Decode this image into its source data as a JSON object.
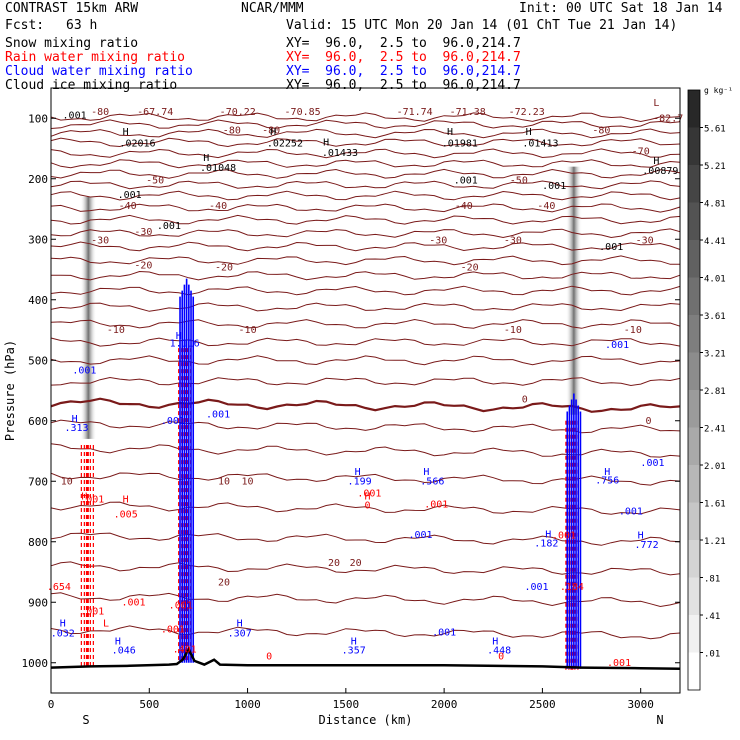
{
  "header": {
    "model": "CONTRAST 15km ARW",
    "institution": "NCAR/MMM",
    "init": "Init: 00 UTC Sat 18 Jan 14",
    "fcst_label": "Fcst:",
    "fcst_value": "63 h",
    "valid": "Valid: 15 UTC Mon 20 Jan 14 (01 ChT Tue 21 Jan 14)",
    "fields": [
      {
        "name": "Snow mixing ratio",
        "xy": "XY=  96.0,  2.5 to  96.0,214.7",
        "color": "#000000"
      },
      {
        "name": "Rain water mixing ratio",
        "xy": "XY=  96.0,  2.5 to  96.0,214.7",
        "color": "#ff0000"
      },
      {
        "name": "Cloud water mixing ratio",
        "xy": "XY=  96.0,  2.5 to  96.0,214.7",
        "color": "#0000ff"
      },
      {
        "name": "Cloud ice mixing ratio",
        "xy": "XY=  96.0,  2.5 to  96.0,214.7",
        "color": "#000000"
      }
    ]
  },
  "chart_data": {
    "type": "cross-section",
    "xlabel": "Distance (km)",
    "ylabel": "Pressure (hPa)",
    "xlim": [
      0,
      3200
    ],
    "ylim": [
      1050,
      50
    ],
    "x_ticks": [
      0,
      500,
      1000,
      1500,
      2000,
      2500,
      3000
    ],
    "x_tick_labels": [
      "0",
      "500",
      "1000",
      "1500",
      "2000",
      "2500",
      "3000"
    ],
    "y_ticks": [
      100,
      200,
      300,
      400,
      500,
      600,
      700,
      800,
      900,
      1000
    ],
    "y_tick_labels": [
      "100",
      "200",
      "300",
      "400",
      "500",
      "600",
      "700",
      "800",
      "900",
      "1000"
    ],
    "ends": {
      "left": "S",
      "right": "N"
    },
    "colorbar": {
      "unit": "g kg⁻¹",
      "labels": [
        "5.61",
        "5.21",
        "4.81",
        "4.41",
        "4.01",
        "3.61",
        "3.21",
        "2.81",
        "2.41",
        "2.01",
        "1.61",
        "1.21",
        ".81",
        ".41",
        ".01"
      ]
    },
    "temperature_contours": [
      {
        "label": "-80",
        "x": 250,
        "p": 95
      },
      {
        "label": "-67.74",
        "x": 530,
        "p": 95
      },
      {
        "label": "-70.22",
        "x": 950,
        "p": 95
      },
      {
        "label": "-70.85",
        "x": 1280,
        "p": 95
      },
      {
        "label": "-71.74",
        "x": 1850,
        "p": 95
      },
      {
        "label": "-71.38",
        "x": 2120,
        "p": 95
      },
      {
        "label": "-72.23",
        "x": 2420,
        "p": 95
      },
      {
        "label": "-82.7",
        "x": 3140,
        "p": 105
      },
      {
        "label": "-80",
        "x": 920,
        "p": 125
      },
      {
        "label": "-80",
        "x": 1120,
        "p": 125
      },
      {
        "label": "-80",
        "x": 2800,
        "p": 125
      },
      {
        "label": "-70",
        "x": 3000,
        "p": 160
      },
      {
        "label": "-50",
        "x": 530,
        "p": 208
      },
      {
        "label": "-50",
        "x": 2380,
        "p": 208
      },
      {
        "label": "-40",
        "x": 390,
        "p": 250
      },
      {
        "label": "-40",
        "x": 850,
        "p": 250
      },
      {
        "label": "-40",
        "x": 2100,
        "p": 250
      },
      {
        "label": "-40",
        "x": 2520,
        "p": 250
      },
      {
        "label": "-30",
        "x": 470,
        "p": 293
      },
      {
        "label": "-30",
        "x": 250,
        "p": 307
      },
      {
        "label": "-30",
        "x": 1970,
        "p": 307
      },
      {
        "label": "-30",
        "x": 2350,
        "p": 307
      },
      {
        "label": "-30",
        "x": 3020,
        "p": 307
      },
      {
        "label": "-20",
        "x": 470,
        "p": 348
      },
      {
        "label": "-20",
        "x": 880,
        "p": 352
      },
      {
        "label": "-20",
        "x": 2130,
        "p": 352
      },
      {
        "label": "-10",
        "x": 330,
        "p": 455
      },
      {
        "label": "-10",
        "x": 1000,
        "p": 455
      },
      {
        "label": "-10",
        "x": 2350,
        "p": 455
      },
      {
        "label": "-10",
        "x": 2960,
        "p": 455
      },
      {
        "label": "0",
        "x": 2410,
        "p": 570
      },
      {
        "label": "0",
        "x": 3040,
        "p": 605
      },
      {
        "label": "10",
        "x": 80,
        "p": 705
      },
      {
        "label": "10",
        "x": 880,
        "p": 705
      },
      {
        "label": "10",
        "x": 1000,
        "p": 705
      },
      {
        "label": "20",
        "x": 880,
        "p": 872
      },
      {
        "label": "20",
        "x": 1440,
        "p": 840
      },
      {
        "label": "20",
        "x": 1550,
        "p": 840
      }
    ],
    "ice_labels": [
      {
        "label": ".001",
        "x": 120,
        "p": 100
      },
      {
        "label": ".02016",
        "x": 440,
        "p": 147
      },
      {
        "label": ".02252",
        "x": 1190,
        "p": 147
      },
      {
        "label": ".01433",
        "x": 1470,
        "p": 162
      },
      {
        "label": ".01981",
        "x": 2080,
        "p": 147
      },
      {
        "label": ".01413",
        "x": 2490,
        "p": 147
      },
      {
        "label": ".01048",
        "x": 850,
        "p": 187
      },
      {
        "label": ".001",
        "x": 2110,
        "p": 208
      },
      {
        "label": ".00879",
        "x": 3100,
        "p": 192
      },
      {
        "label": ".001",
        "x": 400,
        "p": 232
      },
      {
        "label": ".001",
        "x": 600,
        "p": 283
      },
      {
        "label": ".001",
        "x": 2560,
        "p": 217
      },
      {
        "label": ".001",
        "x": 2850,
        "p": 318
      }
    ],
    "ice_maxima": [
      {
        "label": "H",
        "x": 380,
        "p": 128
      },
      {
        "label": "H",
        "x": 1130,
        "p": 128
      },
      {
        "label": "H",
        "x": 1400,
        "p": 145
      },
      {
        "label": "H",
        "x": 2030,
        "p": 128
      },
      {
        "label": "H",
        "x": 2430,
        "p": 128
      },
      {
        "label": "H",
        "x": 790,
        "p": 171
      },
      {
        "label": "H",
        "x": 3080,
        "p": 176
      },
      {
        "label": "L",
        "x": 3080,
        "p": 80
      }
    ],
    "cloud_labels": [
      {
        "label": "1.116",
        "x": 680,
        "p": 477
      },
      {
        "label": ".001",
        "x": 170,
        "p": 522
      },
      {
        "label": ".001",
        "x": 2880,
        "p": 480
      },
      {
        "label": ".001",
        "x": 620,
        "p": 605
      },
      {
        "label": ".001",
        "x": 850,
        "p": 595
      },
      {
        "label": ".313",
        "x": 130,
        "p": 617
      },
      {
        "label": ".001",
        "x": 3060,
        "p": 675
      },
      {
        "label": ".199",
        "x": 1570,
        "p": 705
      },
      {
        "label": ".566",
        "x": 1940,
        "p": 705
      },
      {
        "label": ".001",
        "x": 1880,
        "p": 794
      },
      {
        "label": ".182",
        "x": 2520,
        "p": 808
      },
      {
        "label": ".756",
        "x": 2830,
        "p": 704
      },
      {
        "label": ".001",
        "x": 2950,
        "p": 755
      },
      {
        "label": ".772",
        "x": 3030,
        "p": 810
      },
      {
        "label": ".001",
        "x": 2470,
        "p": 880
      },
      {
        "label": ".032",
        "x": 60,
        "p": 957
      },
      {
        "label": ".046",
        "x": 370,
        "p": 985
      },
      {
        "label": ".307",
        "x": 960,
        "p": 957
      },
      {
        "label": ".357",
        "x": 1540,
        "p": 985
      },
      {
        "label": ".001",
        "x": 2000,
        "p": 955
      },
      {
        "label": ".448",
        "x": 2280,
        "p": 985
      }
    ],
    "cloud_maxima": [
      {
        "label": "H",
        "x": 650,
        "p": 465
      },
      {
        "label": "H",
        "x": 120,
        "p": 602
      },
      {
        "label": "H",
        "x": 1560,
        "p": 690
      },
      {
        "label": "H",
        "x": 1910,
        "p": 690
      },
      {
        "label": "H",
        "x": 2530,
        "p": 793
      },
      {
        "label": "H",
        "x": 2830,
        "p": 690
      },
      {
        "label": "H",
        "x": 3000,
        "p": 795
      },
      {
        "label": "H",
        "x": 60,
        "p": 940
      },
      {
        "label": "H",
        "x": 340,
        "p": 970
      },
      {
        "label": "H",
        "x": 960,
        "p": 940
      },
      {
        "label": "H",
        "x": 1540,
        "p": 970
      },
      {
        "label": "H",
        "x": 2260,
        "p": 970
      }
    ],
    "rain_labels": [
      {
        "label": ".001",
        "x": 210,
        "p": 735
      },
      {
        "label": ".005",
        "x": 380,
        "p": 760
      },
      {
        "label": ".654",
        "x": 40,
        "p": 880
      },
      {
        "label": ".001",
        "x": 420,
        "p": 905
      },
      {
        "label": ".001",
        "x": 210,
        "p": 920
      },
      {
        "label": ".001",
        "x": 660,
        "p": 910
      },
      {
        "label": ".001",
        "x": 620,
        "p": 950
      },
      {
        "label": ".401",
        "x": 680,
        "p": 983
      },
      {
        "label": ".001",
        "x": 1620,
        "p": 725
      },
      {
        "label": ".001",
        "x": 1960,
        "p": 743
      },
      {
        "label": ".001",
        "x": 2610,
        "p": 795
      },
      {
        "label": ".184",
        "x": 2650,
        "p": 880
      },
      {
        "label": ".001",
        "x": 2890,
        "p": 1005
      }
    ],
    "rain_maxima": [
      {
        "label": "H",
        "x": 170,
        "p": 730
      },
      {
        "label": "H",
        "x": 380,
        "p": 735
      },
      {
        "label": "H",
        "x": 1610,
        "p": 730
      },
      {
        "label": "L",
        "x": 280,
        "p": 940
      },
      {
        "label": "0",
        "x": 1610,
        "p": 745
      },
      {
        "label": "0",
        "x": 1110,
        "p": 995
      },
      {
        "label": "0",
        "x": 2290,
        "p": 995
      }
    ],
    "snow_columns": [
      {
        "x": 190,
        "p_top": 230,
        "p_bot": 630
      },
      {
        "x": 2660,
        "p_top": 180,
        "p_bot": 590
      }
    ],
    "convective_cores": [
      {
        "x": 690,
        "p_top": 365,
        "p_bot": 1000,
        "color": "#0000ff"
      },
      {
        "x": 2660,
        "p_top": 555,
        "p_bot": 1010,
        "color": "#0000ff"
      }
    ],
    "rain_shafts": [
      {
        "x": 185,
        "p_top": 640,
        "p_bot": 1010
      },
      {
        "x": 680,
        "p_top": 480,
        "p_bot": 1000
      },
      {
        "x": 2650,
        "p_top": 600,
        "p_bot": 1015
      }
    ],
    "terrain": [
      [
        0,
        1008
      ],
      [
        200,
        1006
      ],
      [
        400,
        1005
      ],
      [
        600,
        1003
      ],
      [
        640,
        1002
      ],
      [
        670,
        995
      ],
      [
        700,
        978
      ],
      [
        730,
        997
      ],
      [
        780,
        1003
      ],
      [
        830,
        995
      ],
      [
        860,
        1003
      ],
      [
        1000,
        1004
      ],
      [
        1500,
        1004
      ],
      [
        2000,
        1004
      ],
      [
        2500,
        1006
      ],
      [
        2700,
        1008
      ],
      [
        3000,
        1009
      ],
      [
        3200,
        1010
      ]
    ]
  }
}
